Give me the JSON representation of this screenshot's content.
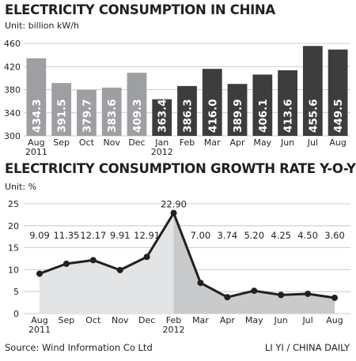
{
  "chart_data": [
    {
      "type": "bar",
      "title": "ELECTRICITY CONSUMPTION IN CHINA",
      "unit": "Unit: billion kW/h",
      "categories": [
        {
          "month": "Aug",
          "year": "2011"
        },
        {
          "month": "Sep",
          "year": ""
        },
        {
          "month": "Oct",
          "year": ""
        },
        {
          "month": "Nov",
          "year": ""
        },
        {
          "month": "Dec",
          "year": ""
        },
        {
          "month": "Jan",
          "year": "2012"
        },
        {
          "month": "Feb",
          "year": ""
        },
        {
          "month": "Mar",
          "year": ""
        },
        {
          "month": "Apr",
          "year": ""
        },
        {
          "month": "May",
          "year": ""
        },
        {
          "month": "Jun",
          "year": ""
        },
        {
          "month": "Jul",
          "year": ""
        },
        {
          "month": "Aug",
          "year": ""
        }
      ],
      "values": [
        434.3,
        391.5,
        379.7,
        383.6,
        409.3,
        363.4,
        386.3,
        416.0,
        389.9,
        406.1,
        413.6,
        455.6,
        449.5
      ],
      "value_labels": [
        "434.3",
        "391.5",
        "379.7",
        "383.6",
        "409.3",
        "363.4",
        "386.3",
        "416.0",
        "389.9",
        "406.1",
        "413.6",
        "455.6",
        "449.5"
      ],
      "colors": [
        "#9d9fa2",
        "#9d9fa2",
        "#9d9fa2",
        "#9d9fa2",
        "#9d9fa2",
        "#3d3d3d",
        "#3d3d3d",
        "#3d3d3d",
        "#3d3d3d",
        "#3d3d3d",
        "#3d3d3d",
        "#3d3d3d",
        "#3d3d3d"
      ],
      "ylim": [
        300,
        460
      ],
      "yticks": [
        300,
        340,
        380,
        420,
        460
      ],
      "grid": true
    },
    {
      "type": "line",
      "title": "ELECTRICITY CONSUMPTION GROWTH RATE Y-O-Y",
      "unit": "Unit: %",
      "categories": [
        {
          "month": "Aug",
          "year": "2011"
        },
        {
          "month": "Sep",
          "year": ""
        },
        {
          "month": "Oct",
          "year": ""
        },
        {
          "month": "Nov",
          "year": ""
        },
        {
          "month": "Dec",
          "year": ""
        },
        {
          "month": "Feb",
          "year": "2012"
        },
        {
          "month": "Mar",
          "year": ""
        },
        {
          "month": "Apr",
          "year": ""
        },
        {
          "month": "May",
          "year": ""
        },
        {
          "month": "Jun",
          "year": ""
        },
        {
          "month": "Jul",
          "year": ""
        },
        {
          "month": "Aug",
          "year": ""
        }
      ],
      "values": [
        9.09,
        11.35,
        12.17,
        9.91,
        12.91,
        22.9,
        7.0,
        3.74,
        5.2,
        4.25,
        4.5,
        3.6
      ],
      "value_labels": [
        "9.09",
        "11.35",
        "12.17",
        "9.91",
        "12.91",
        "22.90",
        "7.00",
        "3.74",
        "5.20",
        "4.25",
        "4.50",
        "3.60"
      ],
      "ylim": [
        0,
        25
      ],
      "yticks": [
        0,
        5,
        10,
        15,
        20,
        25
      ],
      "fill_colors": {
        "2011": "#e3e4e5",
        "2012": "#c9cacc"
      },
      "line_color": "#231f20",
      "grid": true
    }
  ],
  "footer": {
    "source": "Source: Wind Information Co Ltd",
    "credit": "LI YI / CHINA DAILY"
  }
}
